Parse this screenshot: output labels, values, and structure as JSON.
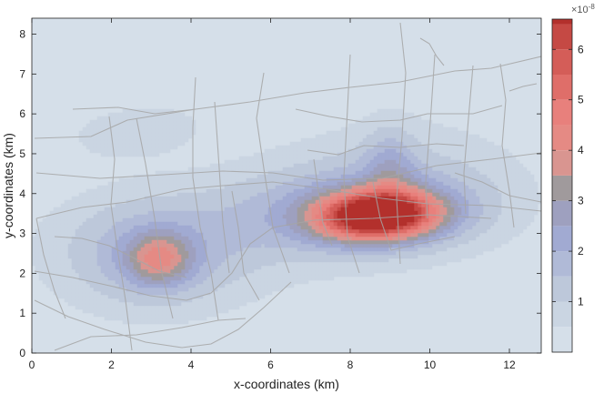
{
  "chart_data": {
    "type": "heatmap",
    "title": "",
    "xlabel": "x-coordinates (km)",
    "ylabel": "y-coordinates (km)",
    "xlim": [
      0,
      12.8
    ],
    "ylim": [
      0,
      8.4
    ],
    "x_ticks": [
      0,
      2,
      4,
      6,
      8,
      10,
      12
    ],
    "y_ticks": [
      0,
      1,
      2,
      3,
      4,
      5,
      6,
      7,
      8
    ],
    "grid": false,
    "colorbar": {
      "exponent_label": "×10",
      "exponent_power": "-8",
      "range": [
        0,
        6.6
      ],
      "tick_values": [
        1,
        2,
        3,
        4,
        5,
        6
      ],
      "tick_labels": [
        "1",
        "2",
        "3",
        "4",
        "5",
        "6"
      ],
      "level_step": 0.5,
      "colors": [
        "#d5dfe9",
        "#cad5e2",
        "#bdc8da",
        "#b0bad7",
        "#a1aad2",
        "#9ea0bf",
        "#a09a9c",
        "#d99590",
        "#e58a84",
        "#e8807c",
        "#df6e69",
        "#d45d58",
        "#c54944",
        "#b3302c"
      ]
    },
    "hotspots": [
      {
        "x": 8.7,
        "y": 3.45,
        "peak": 6.4
      },
      {
        "x": 3.2,
        "y": 2.35,
        "peak": 3.5
      },
      {
        "x": 2.6,
        "y": 5.6,
        "peak": 1.1
      }
    ]
  }
}
